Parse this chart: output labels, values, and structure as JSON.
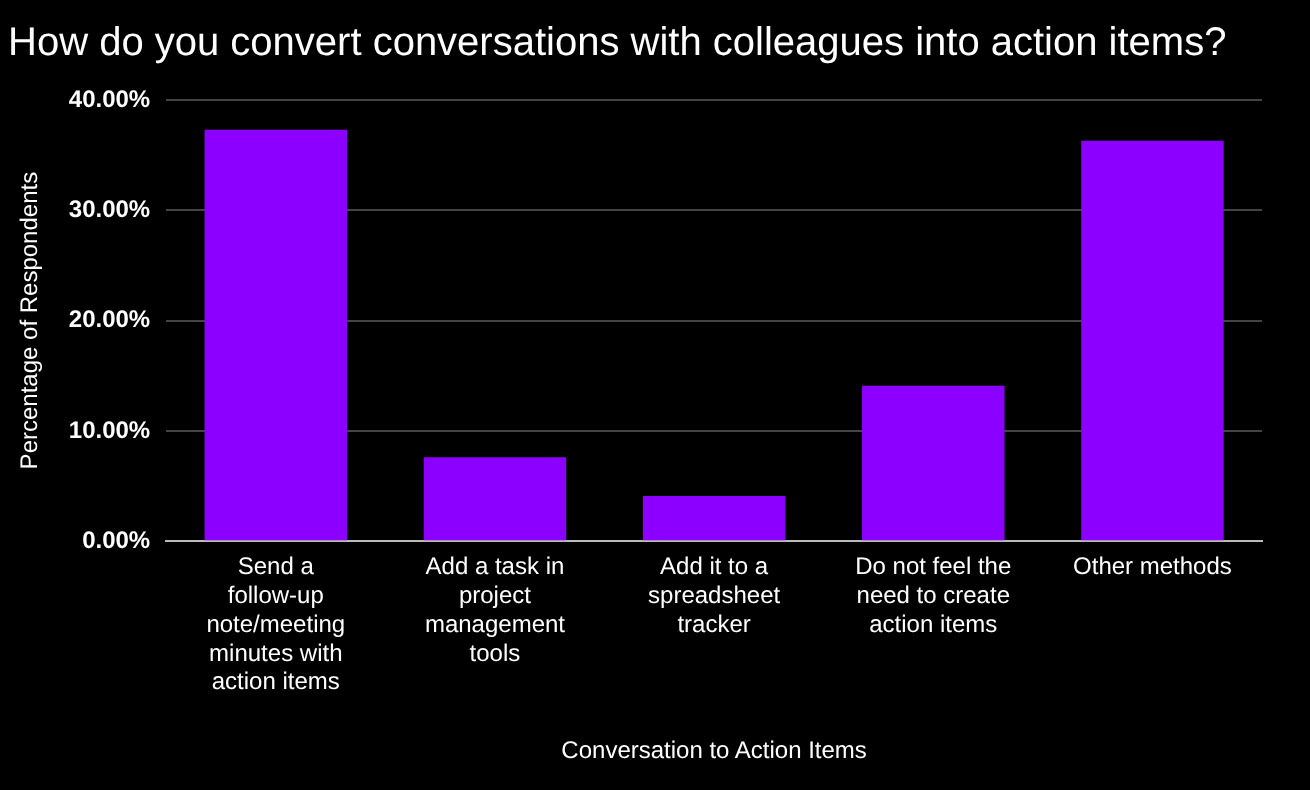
{
  "chart_data": {
    "type": "bar",
    "title": "How do you convert conversations with colleagues into action items?",
    "xlabel": "Conversation to Action Items",
    "ylabel": "Percentage of Respondents",
    "categories": [
      "Send a follow-up note/meeting minutes with action items",
      "Add a task in project management tools",
      "Add it to a spreadsheet tracker",
      "Do not feel the need to create action items",
      "Other methods"
    ],
    "values": [
      37.3,
      7.6,
      4.1,
      14.1,
      36.3
    ],
    "color": "#8c00ff",
    "ylim": [
      0,
      40
    ],
    "yticks": [
      {
        "value": 0,
        "label": "0.00%"
      },
      {
        "value": 10,
        "label": "10.00%"
      },
      {
        "value": 20,
        "label": "20.00%"
      },
      {
        "value": 30,
        "label": "30.00%"
      },
      {
        "value": 40,
        "label": "40.00%"
      }
    ],
    "grid": "y",
    "legend": false
  }
}
